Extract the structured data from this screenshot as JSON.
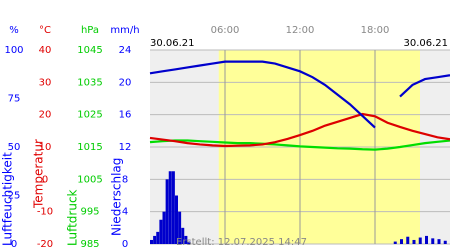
{
  "chart_data": {
    "type": "line",
    "date_left": "30.06.21",
    "date_right": "30.06.21",
    "xlim": [
      0,
      24
    ],
    "xticks": [
      {
        "value": 6,
        "label": "06:00"
      },
      {
        "value": 12,
        "label": "12:00"
      },
      {
        "value": 18,
        "label": "18:00"
      }
    ],
    "daylight": [
      5.5,
      21.6
    ],
    "grid_axis": 1,
    "axes": [
      {
        "unit": "%",
        "label": "Luftfeuchtigkeit",
        "color": "#0000ff",
        "lim": [
          0,
          100
        ],
        "ticks": [
          0,
          25,
          50,
          75,
          100
        ]
      },
      {
        "unit": "°C",
        "label": "Temperatur",
        "color": "#e00000",
        "lim": [
          -20,
          40
        ],
        "ticks": [
          -20,
          -10,
          0,
          10,
          20,
          30,
          40
        ]
      },
      {
        "unit": "hPa",
        "label": "Luftdruck",
        "color": "#00cc00",
        "lim": [
          985,
          1045
        ],
        "ticks": [
          985,
          995,
          1005,
          1015,
          1025,
          1035,
          1045
        ]
      },
      {
        "unit": "mm/h",
        "label": "Niederschlag",
        "color": "#0000ff",
        "lim": [
          0,
          24
        ],
        "ticks": [
          0,
          4,
          8,
          12,
          16,
          20,
          24
        ]
      }
    ],
    "series": [
      {
        "type": "bar",
        "axis": 3,
        "color": "#0000cc",
        "x": [
          0,
          0.25,
          0.5,
          0.75,
          1,
          1.25,
          1.5,
          1.75,
          2,
          2.25,
          2.5,
          2.75,
          3,
          19.5,
          20,
          20.5,
          21,
          21.5,
          22,
          22.5,
          23,
          23.5
        ],
        "values": [
          0.5,
          1,
          1.5,
          3,
          4,
          8,
          9,
          9,
          6,
          4,
          2,
          1,
          0.3,
          0.3,
          0.6,
          0.9,
          0.5,
          0.8,
          1,
          0.7,
          0.6,
          0.4
        ]
      },
      {
        "type": "line",
        "axis": 2,
        "color": "#00dd00",
        "x": [
          0,
          1,
          2,
          3,
          4,
          5,
          6,
          7,
          8,
          9,
          10,
          11,
          12,
          13,
          14,
          15,
          16,
          17,
          18,
          19,
          20,
          21,
          22,
          23,
          24
        ],
        "values": [
          1016.5,
          1016.8,
          1017,
          1017,
          1016.8,
          1016.6,
          1016.4,
          1016.2,
          1016.2,
          1016,
          1015.8,
          1015.5,
          1015.2,
          1015,
          1014.8,
          1014.6,
          1014.5,
          1014.3,
          1014.2,
          1014.5,
          1015,
          1015.6,
          1016.2,
          1016.6,
          1017
        ]
      },
      {
        "type": "line",
        "axis": 1,
        "color": "#dd0000",
        "x": [
          0,
          1,
          2,
          3,
          4,
          5,
          6,
          7,
          8,
          9,
          10,
          11,
          12,
          13,
          14,
          15,
          16,
          17,
          18,
          19,
          20,
          21,
          22,
          23,
          24
        ],
        "values": [
          12.8,
          12.3,
          11.8,
          11.2,
          10.8,
          10.5,
          10.3,
          10.4,
          10.5,
          10.8,
          11.5,
          12.5,
          13.7,
          15,
          16.6,
          17.8,
          19,
          20.2,
          19.5,
          17.5,
          16.2,
          15,
          14,
          13,
          12.4
        ]
      },
      {
        "type": "line",
        "axis": 0,
        "color": "#0000cc",
        "x": [
          0,
          1,
          2,
          3,
          4,
          5,
          6,
          7,
          8,
          9,
          10,
          11,
          12,
          13,
          14,
          15,
          16,
          17,
          18,
          19,
          20,
          21,
          22,
          23,
          24
        ],
        "values": [
          88,
          89,
          90,
          91,
          92,
          93,
          94,
          94,
          94,
          94,
          93,
          91,
          89,
          86,
          82,
          77,
          72,
          66,
          60,
          null,
          76,
          82,
          85,
          86,
          87
        ]
      }
    ],
    "footer": "Erstellt: 12.07.2025 14:47"
  }
}
